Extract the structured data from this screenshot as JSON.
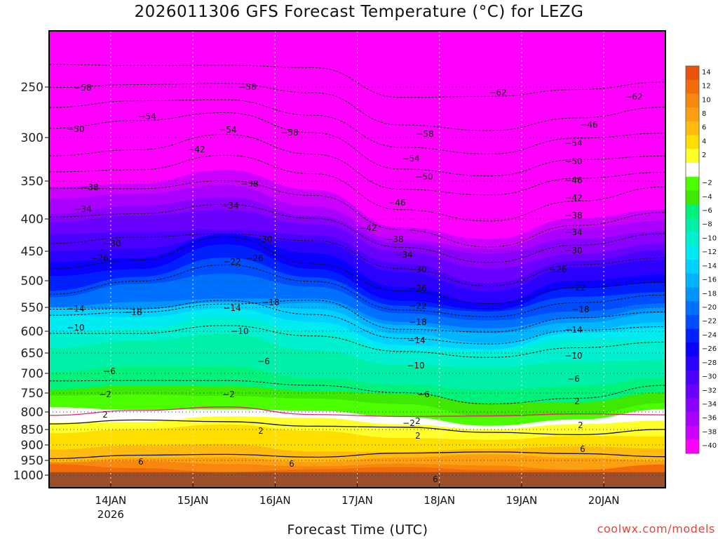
{
  "chart_data": {
    "type": "heatmap",
    "title": "2026011306 GFS Forecast Temperature (°C) for LEZG",
    "xlabel": "Forecast Time (UTC)",
    "ylabel": "",
    "x_ticks": [
      {
        "label": "14JAN",
        "sub": "2026"
      },
      {
        "label": "15JAN",
        "sub": ""
      },
      {
        "label": "16JAN",
        "sub": ""
      },
      {
        "label": "17JAN",
        "sub": ""
      },
      {
        "label": "18JAN",
        "sub": ""
      },
      {
        "label": "19JAN",
        "sub": ""
      },
      {
        "label": "20JAN",
        "sub": ""
      }
    ],
    "x_range_days": [
      13.25,
      20.75
    ],
    "y_ticks": [
      250,
      300,
      350,
      400,
      450,
      500,
      550,
      600,
      650,
      700,
      750,
      800,
      850,
      900,
      950,
      1000
    ],
    "y_range": [
      200,
      1025
    ],
    "colorbar": {
      "top_labels": [
        "14",
        "12",
        "10",
        "8",
        "6",
        "4",
        "2"
      ],
      "bottom_labels": [
        "-2",
        "-4",
        "-6",
        "-8",
        "-10",
        "-12",
        "-14",
        "-16",
        "-18",
        "-20",
        "-22",
        "-24",
        "-26",
        "-28",
        "-30",
        "-32",
        "-34",
        "-36",
        "-38",
        "-40"
      ]
    },
    "colors": {
      "14": "#e8520a",
      "12": "#f26c0c",
      "10": "#f7870f",
      "8": "#fca012",
      "6": "#ffbb10",
      "4": "#ffdf00",
      "2": "#ffff29",
      "0": "#ffffff",
      "-2": "#4cff00",
      "-4": "#3ee800",
      "-6": "#00f27a",
      "-8": "#00f0a8",
      "-10": "#00f0d0",
      "-12": "#00eaf2",
      "-14": "#00d2ff",
      "-16": "#00b4ff",
      "-18": "#0094ff",
      "-20": "#0070ff",
      "-22": "#004cff",
      "-24": "#0020ff",
      "-26": "#0a00ff",
      "-28": "#2c00ff",
      "-30": "#4a00ff",
      "-32": "#6a00ff",
      "-34": "#8a00ff",
      "-36": "#aa00ff",
      "-38": "#cc00ff",
      "-40": "#ff00ff",
      "ground": "#9b4f2a",
      "freezing_line": "#e8207a"
    },
    "isotherm_levels": [
      {
        "t": 6,
        "p": [
          938,
          935,
          930,
          935,
          930,
          932,
          930,
          935
        ]
      },
      {
        "t": 2,
        "p": [
          838,
          830,
          828,
          840,
          848,
          860,
          858,
          845
        ]
      },
      {
        "t": -6,
        "p": [
          725,
          718,
          712,
          728,
          750,
          775,
          760,
          735
        ]
      },
      {
        "t": -10,
        "p": [
          605,
          600,
          585,
          615,
          650,
          660,
          640,
          630
        ]
      },
      {
        "t": -14,
        "p": [
          555,
          552,
          540,
          570,
          615,
          625,
          598,
          590
        ]
      },
      {
        "t": -18,
        "p": [
          565,
          558,
          545,
          535,
          590,
          600,
          575,
          560
        ]
      },
      {
        "t": -22,
        "p": [
          520,
          500,
          475,
          500,
          555,
          575,
          545,
          525
        ]
      },
      {
        "t": -26,
        "p": [
          480,
          470,
          430,
          470,
          520,
          545,
          510,
          498
        ]
      },
      {
        "t": -30,
        "p": [
          440,
          430,
          420,
          430,
          480,
          510,
          470,
          462
        ]
      },
      {
        "t": -34,
        "p": [
          398,
          392,
          378,
          400,
          448,
          470,
          440,
          425
        ]
      },
      {
        "t": -38,
        "p": [
          362,
          360,
          350,
          372,
          418,
          440,
          408,
          392
        ]
      },
      {
        "t": -42,
        "p": [
          340,
          335,
          320,
          342,
          385,
          400,
          378,
          360
        ]
      },
      {
        "t": -46,
        "p": [
          318,
          312,
          298,
          320,
          360,
          370,
          350,
          340
        ]
      },
      {
        "t": -50,
        "p": [
          290,
          285,
          278,
          295,
          335,
          345,
          325,
          318
        ]
      },
      {
        "t": -54,
        "p": [
          270,
          265,
          262,
          275,
          310,
          320,
          300,
          295
        ]
      },
      {
        "t": -58,
        "p": [
          250,
          248,
          245,
          255,
          290,
          295,
          280,
          270
        ]
      },
      {
        "t": -62,
        "p": [
          230,
          230,
          228,
          232,
          262,
          258,
          250,
          245
        ]
      }
    ],
    "contour_labels": [
      "-58",
      "-58",
      "-62",
      "-62",
      "-54",
      "-50",
      "-54",
      "-58",
      "-58",
      "-46",
      "-54",
      "-54",
      "-42",
      "-50",
      "-50",
      "-38",
      "-38",
      "-46",
      "-46",
      "-34",
      "-34",
      "-42",
      "-42",
      "-38",
      "-38",
      "-30",
      "-30",
      "-34",
      "-34",
      "-26",
      "-22",
      "-26",
      "-30",
      "-30",
      "-26",
      "-26",
      "-22",
      "-22",
      "-14",
      "-18",
      "-14",
      "-18",
      "-18",
      "-18",
      "-10",
      "-10",
      "-14",
      "-14",
      "-6",
      "-10",
      "-10",
      "-6",
      "-6",
      "-6",
      "-2",
      "-2",
      "2",
      "2",
      "-2",
      "2",
      "2",
      "2",
      "6",
      "6",
      "6",
      "6",
      "2"
    ]
  },
  "credit": "coolwx.com/models"
}
